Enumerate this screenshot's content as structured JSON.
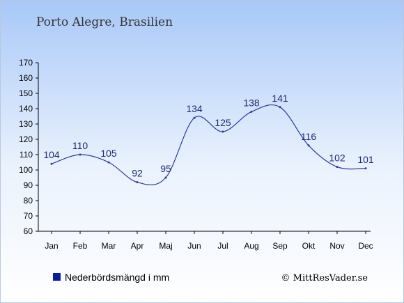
{
  "chart_data": {
    "type": "line",
    "title": "Porto Alegre, Brasilien",
    "categories": [
      "Jan",
      "Feb",
      "Mar",
      "Apr",
      "Maj",
      "Jun",
      "Jul",
      "Aug",
      "Sep",
      "Okt",
      "Nov",
      "Dec"
    ],
    "series": [
      {
        "name": "Nederbördsmängd i mm",
        "values": [
          104,
          110,
          105,
          92,
          95,
          134,
          125,
          138,
          141,
          116,
          102,
          101
        ]
      }
    ],
    "ylim": [
      60,
      170
    ],
    "yticks": [
      60,
      70,
      80,
      90,
      100,
      110,
      120,
      130,
      140,
      150,
      160,
      170
    ],
    "grid": false,
    "legend_position": "bottom-left",
    "colors": {
      "line": "#2a3aa0",
      "legend_marker": "#0a1aa8",
      "label": "#1a2a70",
      "bg_top": "#a8c8f8",
      "bg_bottom": "#ffffff"
    }
  },
  "credit": "© MittResVader.se"
}
